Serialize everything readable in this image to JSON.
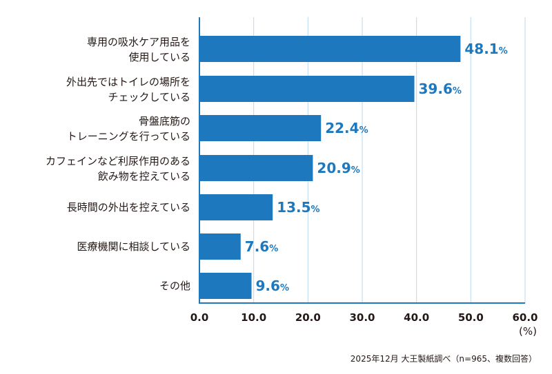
{
  "chart_data": {
    "type": "bar",
    "orientation": "horizontal",
    "categories": [
      [
        "専用の吸水ケア用品を",
        "使用している"
      ],
      [
        "外出先ではトイレの場所を",
        "チェックしている"
      ],
      [
        "骨盤底筋の",
        "トレーニングを行っている"
      ],
      [
        "カフェインなど利尿作用のある",
        "飲み物を控えている"
      ],
      [
        "長時間の外出を控えている"
      ],
      [
        "医療機関に相談している"
      ],
      [
        "その他"
      ]
    ],
    "values": [
      48.1,
      39.6,
      22.4,
      20.9,
      13.5,
      7.6,
      9.6
    ],
    "value_suffix": "%",
    "xlim": [
      0,
      60
    ],
    "xticks": [
      "0.0",
      "10.0",
      "20.0",
      "30.0",
      "40.0",
      "50.0",
      "60.0"
    ],
    "xlabel": "(%)",
    "grid": true,
    "bar_color": "#1e78be",
    "grid_color": "#b9d9ef",
    "source": "2025年12月 大王製紙調べ（n=965、複数回答）"
  }
}
